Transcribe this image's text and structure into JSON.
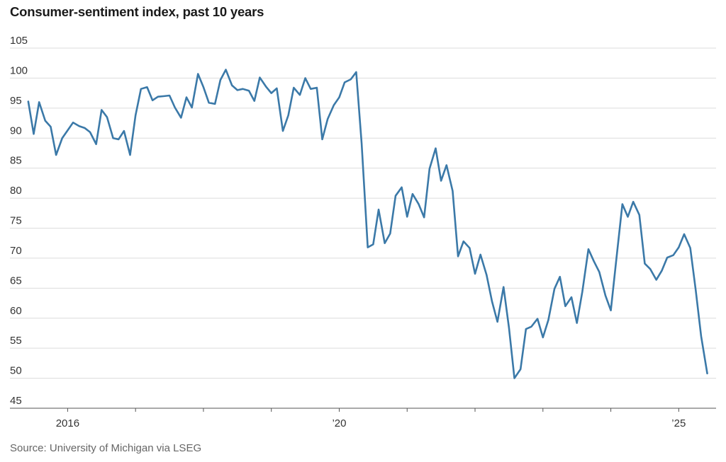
{
  "chart_data": {
    "type": "line",
    "title": "Consumer-sentiment index, past 10 years",
    "source": "Source: University of Michigan via LSEG",
    "xlabel": "",
    "ylabel": "",
    "ylim": [
      45,
      105
    ],
    "yticks": [
      45,
      50,
      55,
      60,
      65,
      70,
      75,
      80,
      85,
      90,
      95,
      100,
      105
    ],
    "xlim": [
      2015.15,
      2025.55
    ],
    "xticks": [
      {
        "value": 2016,
        "label": "2016"
      },
      {
        "value": 2017,
        "label": ""
      },
      {
        "value": 2018,
        "label": ""
      },
      {
        "value": 2019,
        "label": ""
      },
      {
        "value": 2020,
        "label": "’20"
      },
      {
        "value": 2021,
        "label": ""
      },
      {
        "value": 2022,
        "label": ""
      },
      {
        "value": 2023,
        "label": ""
      },
      {
        "value": 2024,
        "label": ""
      },
      {
        "value": 2025,
        "label": "’25"
      }
    ],
    "grid": true,
    "line_color": "#3b79a8",
    "series": [
      {
        "name": "",
        "points": [
          [
            2015.42,
            96.1
          ],
          [
            2015.5,
            90.7
          ],
          [
            2015.58,
            96.0
          ],
          [
            2015.67,
            92.9
          ],
          [
            2015.75,
            91.9
          ],
          [
            2015.83,
            87.2
          ],
          [
            2015.92,
            90.0
          ],
          [
            2016.0,
            91.3
          ],
          [
            2016.08,
            92.6
          ],
          [
            2016.17,
            92.0
          ],
          [
            2016.25,
            91.7
          ],
          [
            2016.33,
            91.0
          ],
          [
            2016.42,
            89.0
          ],
          [
            2016.5,
            94.7
          ],
          [
            2016.58,
            93.5
          ],
          [
            2016.67,
            90.0
          ],
          [
            2016.75,
            89.8
          ],
          [
            2016.83,
            91.2
          ],
          [
            2016.92,
            87.2
          ],
          [
            2017.0,
            93.8
          ],
          [
            2017.08,
            98.2
          ],
          [
            2017.17,
            98.5
          ],
          [
            2017.25,
            96.3
          ],
          [
            2017.33,
            96.9
          ],
          [
            2017.42,
            97.0
          ],
          [
            2017.5,
            97.1
          ],
          [
            2017.58,
            95.1
          ],
          [
            2017.67,
            93.4
          ],
          [
            2017.75,
            96.8
          ],
          [
            2017.83,
            95.1
          ],
          [
            2017.92,
            100.7
          ],
          [
            2018.0,
            98.5
          ],
          [
            2018.08,
            95.9
          ],
          [
            2018.17,
            95.7
          ],
          [
            2018.25,
            99.7
          ],
          [
            2018.33,
            101.4
          ],
          [
            2018.42,
            98.8
          ],
          [
            2018.5,
            98.0
          ],
          [
            2018.58,
            98.2
          ],
          [
            2018.67,
            97.9
          ],
          [
            2018.75,
            96.2
          ],
          [
            2018.83,
            100.1
          ],
          [
            2018.92,
            98.6
          ],
          [
            2019.0,
            97.5
          ],
          [
            2019.08,
            98.3
          ],
          [
            2019.17,
            91.2
          ],
          [
            2019.25,
            93.8
          ],
          [
            2019.33,
            98.4
          ],
          [
            2019.42,
            97.2
          ],
          [
            2019.5,
            100.0
          ],
          [
            2019.58,
            98.2
          ],
          [
            2019.67,
            98.4
          ],
          [
            2019.75,
            89.8
          ],
          [
            2019.83,
            93.2
          ],
          [
            2019.92,
            95.5
          ],
          [
            2020.0,
            96.8
          ],
          [
            2020.08,
            99.3
          ],
          [
            2020.17,
            99.8
          ],
          [
            2020.25,
            101.0
          ],
          [
            2020.33,
            89.1
          ],
          [
            2020.42,
            71.8
          ],
          [
            2020.5,
            72.3
          ],
          [
            2020.58,
            78.1
          ],
          [
            2020.67,
            72.5
          ],
          [
            2020.75,
            74.1
          ],
          [
            2020.83,
            80.4
          ],
          [
            2020.92,
            81.8
          ],
          [
            2021.0,
            76.9
          ],
          [
            2021.08,
            80.7
          ],
          [
            2021.17,
            79.0
          ],
          [
            2021.25,
            76.8
          ],
          [
            2021.33,
            84.9
          ],
          [
            2021.42,
            88.3
          ],
          [
            2021.5,
            82.9
          ],
          [
            2021.58,
            85.5
          ],
          [
            2021.67,
            81.2
          ],
          [
            2021.75,
            70.3
          ],
          [
            2021.83,
            72.8
          ],
          [
            2021.92,
            71.7
          ],
          [
            2022.0,
            67.4
          ],
          [
            2022.08,
            70.6
          ],
          [
            2022.17,
            67.2
          ],
          [
            2022.25,
            62.8
          ],
          [
            2022.33,
            59.4
          ],
          [
            2022.42,
            65.2
          ],
          [
            2022.5,
            58.4
          ],
          [
            2022.58,
            50.0
          ],
          [
            2022.67,
            51.5
          ],
          [
            2022.75,
            58.2
          ],
          [
            2022.83,
            58.6
          ],
          [
            2022.92,
            59.9
          ],
          [
            2023.0,
            56.8
          ],
          [
            2023.08,
            59.7
          ],
          [
            2023.17,
            64.9
          ],
          [
            2023.25,
            66.9
          ],
          [
            2023.33,
            62.0
          ],
          [
            2023.42,
            63.5
          ],
          [
            2023.5,
            59.2
          ],
          [
            2023.58,
            64.4
          ],
          [
            2023.67,
            71.5
          ],
          [
            2023.75,
            69.5
          ],
          [
            2023.83,
            67.7
          ],
          [
            2023.92,
            63.8
          ],
          [
            2024.0,
            61.3
          ],
          [
            2024.08,
            69.7
          ],
          [
            2024.17,
            79.0
          ],
          [
            2024.25,
            76.9
          ],
          [
            2024.33,
            79.4
          ],
          [
            2024.42,
            77.2
          ],
          [
            2024.5,
            69.1
          ],
          [
            2024.58,
            68.2
          ],
          [
            2024.67,
            66.4
          ],
          [
            2024.75,
            67.9
          ],
          [
            2024.83,
            70.1
          ],
          [
            2024.92,
            70.5
          ],
          [
            2025.0,
            71.8
          ],
          [
            2025.08,
            74.0
          ],
          [
            2025.17,
            71.7
          ],
          [
            2025.25,
            64.7
          ],
          [
            2025.33,
            57.0
          ],
          [
            2025.42,
            50.8
          ]
        ]
      }
    ]
  }
}
